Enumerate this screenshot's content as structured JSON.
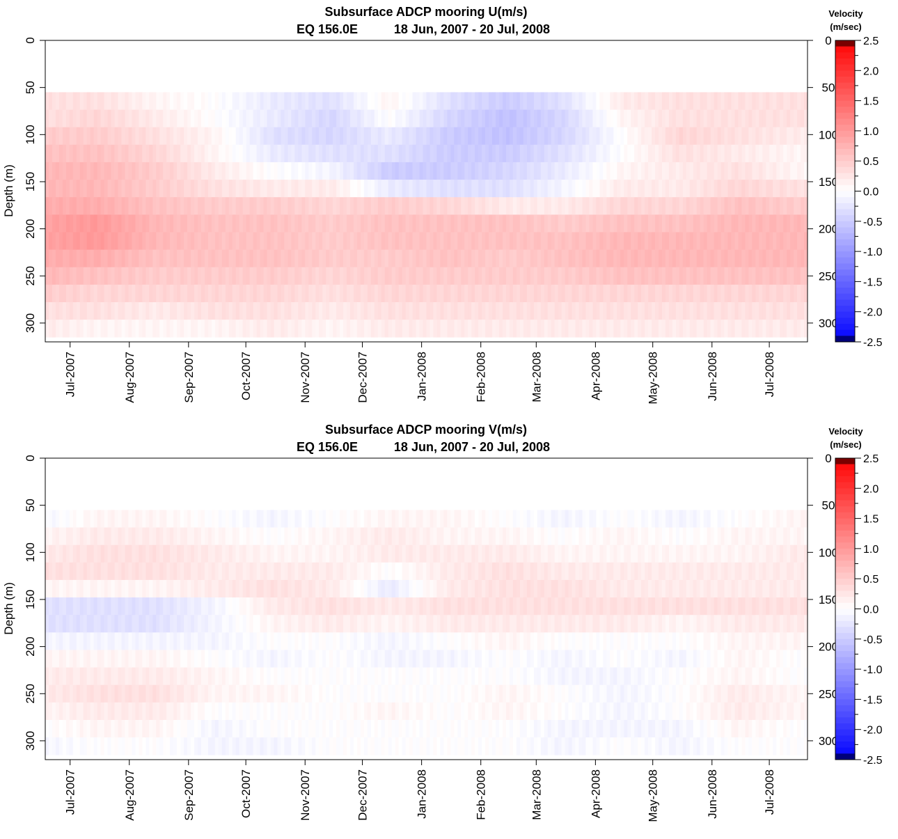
{
  "chart_data": [
    {
      "type": "heatmap",
      "title": "Subsurface ADCP mooring U(m/s)",
      "subtitle_location": "EQ 156.0E",
      "subtitle_period": "18 Jun, 2007 - 20 Jul, 2008",
      "ylabel": "Depth (m)",
      "ylim": [
        320,
        0
      ],
      "y_ticks": [
        0,
        50,
        100,
        150,
        200,
        250,
        300
      ],
      "y_tick_labels": [
        "0",
        "50",
        "100",
        "150",
        "200",
        "250",
        "300"
      ],
      "x_range": [
        "2007-06-18",
        "2008-07-20"
      ],
      "x_ticks": [
        "2007-07-01",
        "2007-08-01",
        "2007-09-01",
        "2007-10-01",
        "2007-11-01",
        "2007-12-01",
        "2008-01-01",
        "2008-02-01",
        "2008-03-01",
        "2008-04-01",
        "2008-05-01",
        "2008-06-01",
        "2008-07-01"
      ],
      "x_tick_labels": [
        "Jul-2007",
        "Aug-2007",
        "Sep-2007",
        "Oct-2007",
        "Nov-2007",
        "Dec-2007",
        "Jan-2008",
        "Feb-2008",
        "Mar-2008",
        "Apr-2008",
        "May-2008",
        "Jun-2008",
        "Jul-2008"
      ],
      "data_depth_range": [
        55,
        315
      ],
      "colorbar": {
        "title_line1": "Velocity",
        "title_line2": "(m/sec)",
        "range": [
          -2.5,
          2.5
        ],
        "ticks": [
          2.5,
          2.0,
          1.5,
          1.0,
          0.5,
          0.0,
          -0.5,
          -1.0,
          -1.5,
          -2.0,
          -2.5
        ],
        "tick_labels": [
          "2.5",
          "2.0",
          "1.5",
          "1.0",
          "0.5",
          "0.0",
          "-0.5",
          "-1.0",
          "-1.5",
          "-2.0",
          "-2.5"
        ],
        "colors": {
          "negative": "#0000ff",
          "zero": "#ffffff",
          "positive": "#ff0000",
          "max": "#7a0000",
          "min": "#00007a"
        }
      },
      "field": {
        "depths": [
          55,
          75,
          95,
          115,
          135,
          155,
          175,
          195,
          215,
          235,
          255,
          275,
          295,
          315
        ],
        "months": [
          "2007-06",
          "2007-07",
          "2007-08",
          "2007-09",
          "2007-10",
          "2007-11",
          "2007-12",
          "2008-01",
          "2008-02",
          "2008-03",
          "2008-04",
          "2008-05",
          "2008-06",
          "2008-07"
        ],
        "values": [
          [
            0.3,
            0.3,
            0.1,
            0.0,
            -0.2,
            -0.3,
            0.1,
            -0.3,
            -0.5,
            -0.3,
            0.2,
            0.3,
            0.3,
            0.3
          ],
          [
            0.3,
            0.4,
            0.2,
            0.0,
            -0.2,
            -0.4,
            0.0,
            -0.4,
            -0.6,
            -0.4,
            0.1,
            0.3,
            0.3,
            0.3
          ],
          [
            0.5,
            0.5,
            0.3,
            0.1,
            -0.3,
            -0.4,
            -0.2,
            -0.5,
            -0.6,
            -0.4,
            0.0,
            0.4,
            0.3,
            0.2
          ],
          [
            0.6,
            0.6,
            0.4,
            0.1,
            -0.2,
            -0.3,
            -0.3,
            -0.5,
            -0.5,
            -0.3,
            0.0,
            0.3,
            0.2,
            0.1
          ],
          [
            0.7,
            0.7,
            0.5,
            0.2,
            0.0,
            -0.1,
            -0.5,
            -0.5,
            -0.4,
            -0.2,
            0.1,
            0.2,
            0.3,
            0.1
          ],
          [
            0.7,
            0.7,
            0.5,
            0.3,
            0.2,
            0.2,
            -0.2,
            -0.3,
            -0.3,
            -0.1,
            0.2,
            0.2,
            0.4,
            0.3
          ],
          [
            0.8,
            0.8,
            0.6,
            0.5,
            0.5,
            0.4,
            0.5,
            0.4,
            0.2,
            0.2,
            0.4,
            0.4,
            0.6,
            0.5
          ],
          [
            0.9,
            1.0,
            0.7,
            0.6,
            0.6,
            0.5,
            0.6,
            0.6,
            0.6,
            0.5,
            0.6,
            0.6,
            0.7,
            0.7
          ],
          [
            0.9,
            1.0,
            0.7,
            0.6,
            0.6,
            0.5,
            0.6,
            0.6,
            0.6,
            0.6,
            0.7,
            0.7,
            0.7,
            0.7
          ],
          [
            0.8,
            0.8,
            0.6,
            0.6,
            0.6,
            0.5,
            0.5,
            0.6,
            0.5,
            0.6,
            0.7,
            0.7,
            0.7,
            0.7
          ],
          [
            0.7,
            0.6,
            0.5,
            0.5,
            0.5,
            0.4,
            0.5,
            0.5,
            0.5,
            0.5,
            0.6,
            0.6,
            0.6,
            0.6
          ],
          [
            0.5,
            0.4,
            0.4,
            0.4,
            0.4,
            0.3,
            0.4,
            0.4,
            0.4,
            0.4,
            0.4,
            0.4,
            0.4,
            0.4
          ],
          [
            0.3,
            0.3,
            0.2,
            0.3,
            0.3,
            0.2,
            0.3,
            0.3,
            0.3,
            0.3,
            0.3,
            0.3,
            0.3,
            0.3
          ],
          [
            0.2,
            0.1,
            0.1,
            0.1,
            0.2,
            0.1,
            0.2,
            0.2,
            0.2,
            0.2,
            0.2,
            0.2,
            0.2,
            0.2
          ]
        ]
      }
    },
    {
      "type": "heatmap",
      "title": "Subsurface ADCP mooring V(m/s)",
      "subtitle_location": "EQ 156.0E",
      "subtitle_period": "18 Jun, 2007 - 20 Jul, 2008",
      "ylabel": "Depth (m)",
      "ylim": [
        320,
        0
      ],
      "y_ticks": [
        0,
        50,
        100,
        150,
        200,
        250,
        300
      ],
      "y_tick_labels": [
        "0",
        "50",
        "100",
        "150",
        "200",
        "250",
        "300"
      ],
      "x_range": [
        "2007-06-18",
        "2008-07-20"
      ],
      "x_ticks": [
        "2007-07-01",
        "2007-08-01",
        "2007-09-01",
        "2007-10-01",
        "2007-11-01",
        "2007-12-01",
        "2008-01-01",
        "2008-02-01",
        "2008-03-01",
        "2008-04-01",
        "2008-05-01",
        "2008-06-01",
        "2008-07-01"
      ],
      "x_tick_labels": [
        "Jul-2007",
        "Aug-2007",
        "Sep-2007",
        "Oct-2007",
        "Nov-2007",
        "Dec-2007",
        "Jan-2008",
        "Feb-2008",
        "Mar-2008",
        "Apr-2008",
        "May-2008",
        "Jun-2008",
        "Jul-2008"
      ],
      "data_depth_range": [
        55,
        315
      ],
      "colorbar": {
        "title_line1": "Velocity",
        "title_line2": "(m/sec)",
        "range": [
          -2.5,
          2.5
        ],
        "ticks": [
          2.5,
          2.0,
          1.5,
          1.0,
          0.5,
          0.0,
          -0.5,
          -1.0,
          -1.5,
          -2.0,
          -2.5
        ],
        "tick_labels": [
          "2.5",
          "2.0",
          "1.5",
          "1.0",
          "0.5",
          "0.0",
          "-0.5",
          "-1.0",
          "-1.5",
          "-2.0",
          "-2.5"
        ],
        "colors": {
          "negative": "#0000ff",
          "zero": "#ffffff",
          "positive": "#ff0000",
          "max": "#7a0000",
          "min": "#00007a"
        }
      },
      "field": {
        "depths": [
          55,
          75,
          95,
          115,
          135,
          155,
          175,
          195,
          215,
          235,
          255,
          275,
          295,
          315
        ],
        "months": [
          "2007-06",
          "2007-07",
          "2007-08",
          "2007-09",
          "2007-10",
          "2007-11",
          "2007-12",
          "2008-01",
          "2008-02",
          "2008-03",
          "2008-04",
          "2008-05",
          "2008-06",
          "2008-07"
        ],
        "values": [
          [
            -0.1,
            0.1,
            0.1,
            0.0,
            -0.1,
            0.0,
            0.1,
            0.1,
            0.0,
            -0.1,
            0.0,
            -0.1,
            0.0,
            0.1
          ],
          [
            0.1,
            0.2,
            0.2,
            0.1,
            0.0,
            0.1,
            0.2,
            0.1,
            0.1,
            0.0,
            0.1,
            0.0,
            0.1,
            0.1
          ],
          [
            0.2,
            0.3,
            0.3,
            0.2,
            0.1,
            0.1,
            0.2,
            0.2,
            0.2,
            0.1,
            0.1,
            0.1,
            0.1,
            0.2
          ],
          [
            0.3,
            0.3,
            0.3,
            0.2,
            0.2,
            0.2,
            0.0,
            0.2,
            0.3,
            0.2,
            0.2,
            0.2,
            0.2,
            0.2
          ],
          [
            0.1,
            0.1,
            0.1,
            0.2,
            0.3,
            0.2,
            -0.2,
            0.2,
            0.3,
            0.3,
            0.2,
            0.2,
            0.2,
            0.2
          ],
          [
            -0.3,
            -0.3,
            -0.3,
            -0.1,
            0.2,
            0.3,
            0.2,
            0.3,
            0.3,
            0.3,
            0.3,
            0.3,
            0.3,
            0.3
          ],
          [
            -0.3,
            -0.3,
            -0.3,
            -0.1,
            0.1,
            0.2,
            0.1,
            0.2,
            0.2,
            0.2,
            0.2,
            0.1,
            0.2,
            0.2
          ],
          [
            -0.1,
            -0.1,
            -0.1,
            -0.1,
            0.0,
            0.0,
            -0.1,
            0.0,
            0.1,
            0.0,
            0.0,
            0.0,
            0.1,
            0.1
          ],
          [
            0.1,
            0.1,
            0.1,
            0.0,
            -0.1,
            0.0,
            -0.1,
            -0.1,
            0.0,
            -0.1,
            0.0,
            -0.1,
            0.1,
            0.0
          ],
          [
            0.2,
            0.2,
            0.2,
            0.1,
            0.0,
            0.0,
            0.0,
            0.0,
            0.0,
            -0.1,
            -0.1,
            0.0,
            0.1,
            0.0
          ],
          [
            0.2,
            0.3,
            0.3,
            0.1,
            0.1,
            0.0,
            0.0,
            0.0,
            0.1,
            0.0,
            -0.1,
            0.0,
            0.2,
            0.1
          ],
          [
            0.1,
            0.2,
            0.2,
            0.0,
            0.0,
            0.0,
            0.1,
            0.0,
            0.1,
            0.0,
            -0.1,
            0.0,
            0.2,
            0.1
          ],
          [
            0.0,
            0.1,
            0.1,
            -0.1,
            0.0,
            0.0,
            0.0,
            0.0,
            0.0,
            -0.1,
            -0.1,
            -0.1,
            0.1,
            0.0
          ],
          [
            -0.1,
            0.0,
            0.0,
            -0.1,
            -0.1,
            0.0,
            0.0,
            0.0,
            0.0,
            -0.1,
            0.0,
            -0.1,
            0.0,
            0.0
          ]
        ]
      }
    }
  ]
}
